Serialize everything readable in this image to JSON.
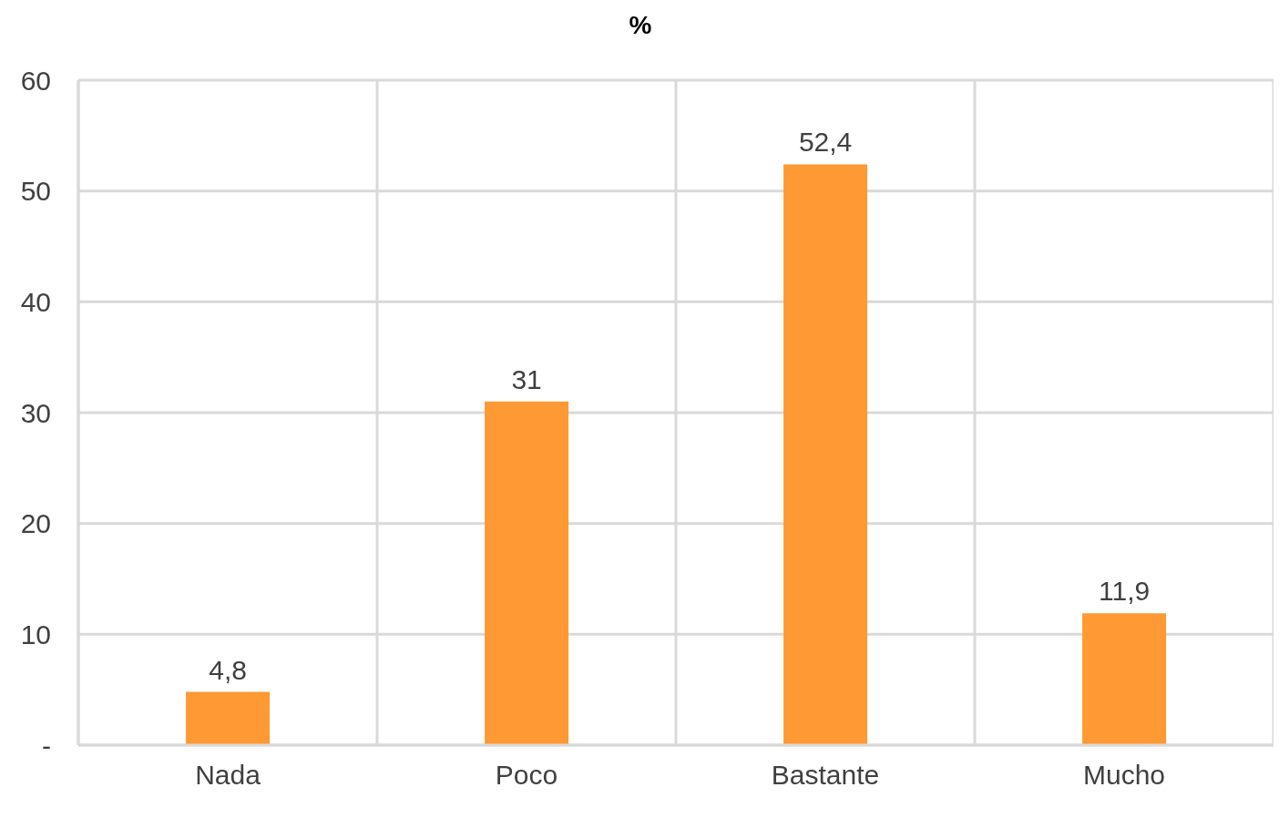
{
  "chart_data": {
    "type": "bar",
    "title": "%",
    "categories": [
      "Nada",
      "Poco",
      "Bastante",
      "Mucho"
    ],
    "values": [
      4.8,
      31,
      52.4,
      11.9
    ],
    "value_labels": [
      "4,8",
      "31",
      "52,4",
      "11,9"
    ],
    "color": "#ff9933",
    "ylim": [
      0,
      60
    ],
    "yticks": [
      {
        "value": 0,
        "label": "-"
      },
      10,
      20,
      30,
      40,
      50,
      60
    ],
    "grid": true
  }
}
